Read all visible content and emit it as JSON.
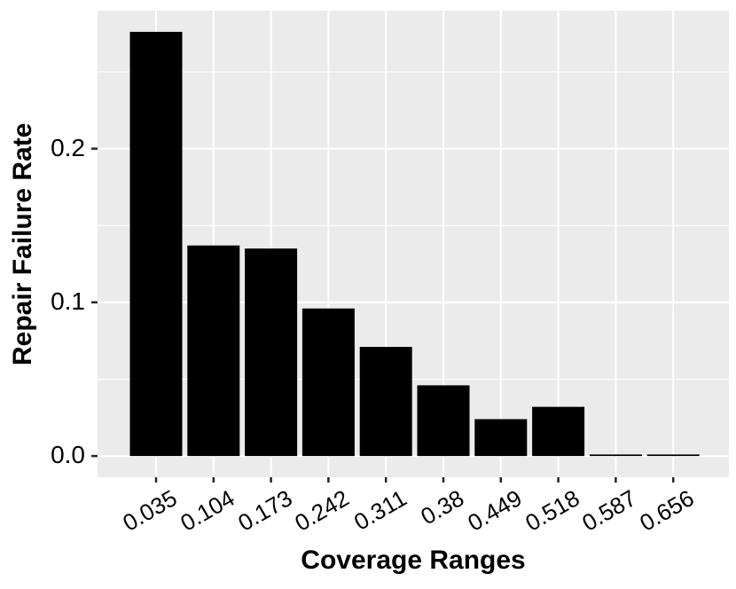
{
  "chart_data": {
    "type": "bar",
    "title": "",
    "xlabel": "Coverage Ranges",
    "ylabel": "Repair Failure Rate",
    "categories": [
      "0.035",
      "0.104",
      "0.173",
      "0.242",
      "0.311",
      "0.38",
      "0.449",
      "0.518",
      "0.587",
      "0.656"
    ],
    "values": [
      0.276,
      0.137,
      0.135,
      0.096,
      0.071,
      0.046,
      0.024,
      0.032,
      0.001,
      0.001
    ],
    "y_ticks": [
      {
        "label": "0.0",
        "value": 0.0
      },
      {
        "label": "0.1",
        "value": 0.1
      },
      {
        "label": "0.2",
        "value": 0.2
      }
    ],
    "y_minor_gridlines": [
      0.05,
      0.15,
      0.25
    ],
    "ylim": [
      -0.0138,
      0.2898
    ],
    "legend": "none",
    "grid": "on",
    "colors": {
      "bar_fill": "#000000",
      "panel_background": "#EBEBEB",
      "gridline": "#FFFFFF",
      "tick_mark": "#262626",
      "text": "#000000",
      "page_background": "#FFFFFF"
    }
  }
}
